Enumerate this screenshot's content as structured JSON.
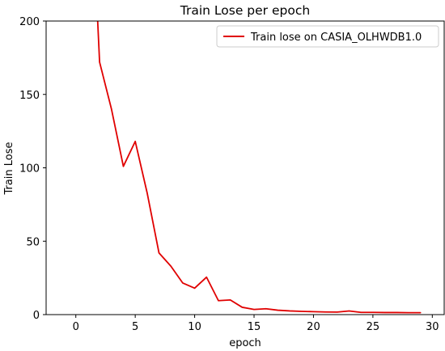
{
  "chart_data": {
    "type": "line",
    "title": "Train Lose per epoch",
    "xlabel": "epoch",
    "ylabel": "Train Lose",
    "xlim": [
      -2.5,
      31
    ],
    "ylim": [
      0,
      200
    ],
    "xticks": [
      0,
      5,
      10,
      15,
      20,
      25,
      30
    ],
    "yticks": [
      0,
      50,
      100,
      150,
      200
    ],
    "grid": false,
    "legend_position": "top-right",
    "series": [
      {
        "name": "Train lose on CASIA_OLHWDB1.0",
        "color": "#e00000",
        "x": [
          1,
          2,
          3,
          4,
          5,
          6,
          7,
          8,
          9,
          10,
          11,
          12,
          13,
          14,
          15,
          16,
          17,
          18,
          19,
          20,
          21,
          22,
          23,
          24,
          25,
          26,
          27,
          28,
          29
        ],
        "y": [
          345,
          172,
          140,
          101,
          118,
          83,
          42,
          33,
          21.5,
          18,
          25.5,
          9.5,
          10,
          5,
          3.5,
          4,
          3,
          2.5,
          2.2,
          2,
          1.8,
          1.7,
          2.5,
          1.5,
          1.5,
          1.4,
          1.4,
          1.3,
          1.3
        ]
      }
    ]
  }
}
